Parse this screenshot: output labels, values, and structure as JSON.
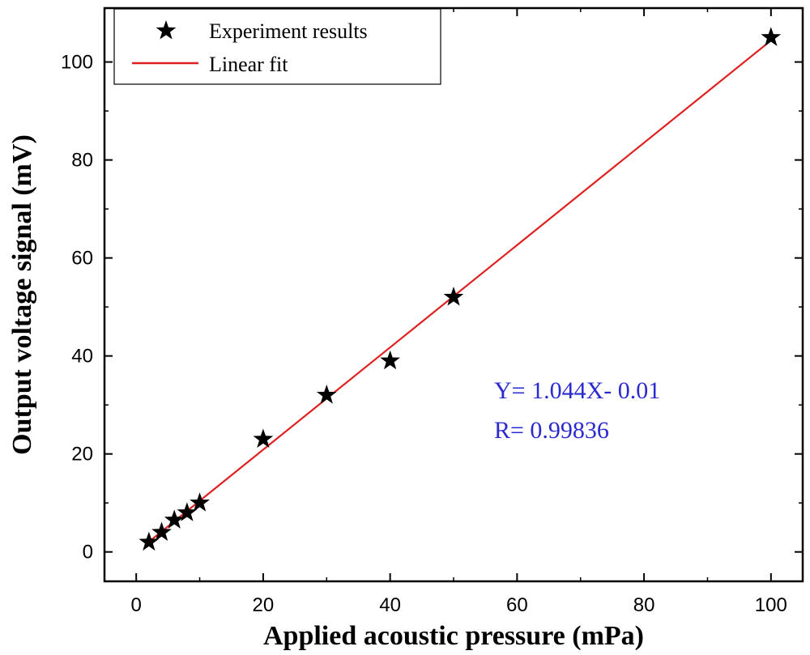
{
  "chart_data": {
    "type": "scatter",
    "xlabel": "Applied acoustic pressure (mPa)",
    "ylabel": "Output voltage signal (mV)",
    "xlim": [
      -5,
      105
    ],
    "ylim": [
      -6,
      111
    ],
    "x_ticks": [
      0,
      20,
      40,
      60,
      80,
      100
    ],
    "y_ticks": [
      0,
      20,
      40,
      60,
      80,
      100
    ],
    "x_tick_labels": [
      "0",
      "20",
      "40",
      "60",
      "80",
      "100"
    ],
    "y_tick_labels": [
      "0",
      "20",
      "40",
      "60",
      "80",
      "100"
    ],
    "grid": false,
    "legend_position": "top-left",
    "series": [
      {
        "name": "Experiment results",
        "kind": "scatter",
        "marker": "star",
        "color": "#000000",
        "x": [
          2,
          4,
          6,
          8,
          10,
          20,
          30,
          40,
          50,
          100
        ],
        "y": [
          2,
          4,
          6.5,
          8,
          10,
          23,
          32,
          39,
          52,
          105
        ]
      },
      {
        "name": "Linear fit",
        "kind": "line",
        "color": "#e02020",
        "x": [
          2,
          100
        ],
        "y": [
          2.08,
          104.39
        ]
      }
    ],
    "annotations": [
      "Y= 1.044X- 0.01",
      "R= 0.99836"
    ],
    "annotation_color": "#2a2ad0"
  }
}
